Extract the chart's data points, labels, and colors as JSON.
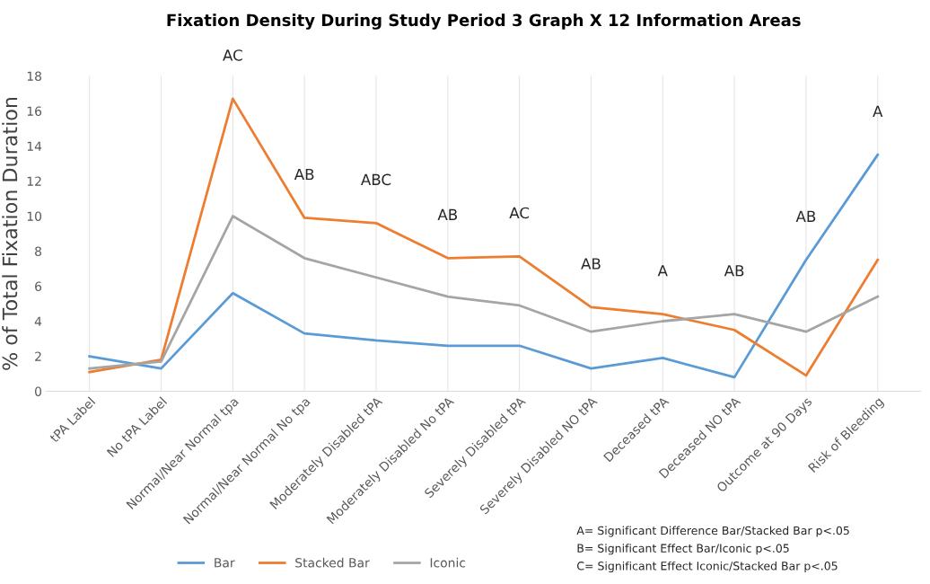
{
  "chart_data": {
    "type": "line",
    "title": "Fixation Density During Study Period 3 Graph X 12 Information Areas",
    "ylabel": "% of Total Fixation Duration",
    "categories": [
      "tPA Label",
      "No tPA Label",
      "Normal/Near Normal tpa",
      "Normal/Near Normal No tpa",
      "Moderately Disabled tPA",
      "Moderately Disabled No tPA",
      "Severely Disabled tPA",
      "Severely Disabled NO tPA",
      "Deceased tPA",
      "Deceased NO tPA",
      "Outcome at 90 Days",
      "Risk of Bleeding"
    ],
    "series": [
      {
        "name": "Bar",
        "color": "#5b9bd5",
        "values": [
          2.0,
          1.3,
          5.6,
          3.3,
          2.9,
          2.6,
          2.6,
          1.3,
          1.9,
          0.8,
          7.5,
          13.5
        ]
      },
      {
        "name": "Stacked Bar",
        "color": "#ed7d31",
        "values": [
          1.1,
          1.8,
          16.7,
          9.9,
          9.6,
          7.6,
          7.7,
          4.8,
          4.4,
          3.5,
          0.9,
          7.5
        ]
      },
      {
        "name": "Iconic",
        "color": "#a5a5a5",
        "values": [
          1.3,
          1.7,
          10.0,
          7.6,
          6.5,
          5.4,
          4.9,
          3.4,
          4.0,
          4.4,
          3.4,
          5.4
        ]
      }
    ],
    "ylim": [
      0,
      18
    ],
    "yticks": [
      0,
      2,
      4,
      6,
      8,
      10,
      12,
      14,
      16,
      18
    ],
    "grid": "x",
    "legend": "bottom",
    "marker": "none",
    "line_style": "solid",
    "annotations": [
      "AC",
      "AB",
      "ABC",
      "AB",
      "AC",
      "AB",
      "A",
      "AB",
      "AB",
      "A",
      "A= Significant Difference Bar/Stacked Bar p<.05\nB= Significant Effect Bar/Iconic p<.05\nC= Significant Effect Iconic/Stacked Bar p<.05"
    ]
  }
}
